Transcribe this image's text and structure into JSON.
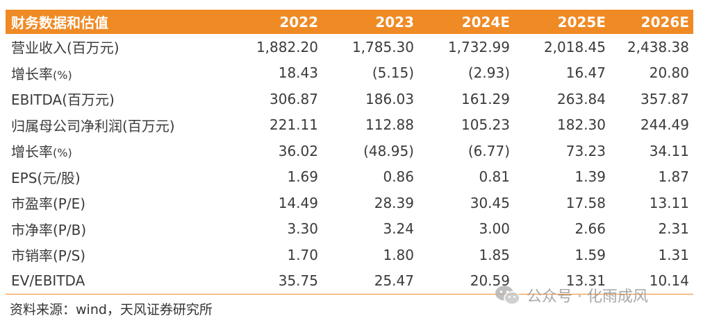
{
  "table": {
    "headers": [
      "财务数据和估值",
      "2022",
      "2023",
      "2024E",
      "2025E",
      "2026E"
    ],
    "rows": [
      {
        "label": "营业收入(百万元)",
        "label_suffix": "",
        "values": [
          "1,882.20",
          "1,785.30",
          "1,732.99",
          "2,018.45",
          "2,438.38"
        ]
      },
      {
        "label": "增长率",
        "label_suffix": "(%)",
        "values": [
          "18.43",
          "(5.15)",
          "(2.93)",
          "16.47",
          "20.80"
        ]
      },
      {
        "label": "EBITDA(百万元)",
        "label_suffix": "",
        "values": [
          "306.87",
          "186.03",
          "161.29",
          "263.84",
          "357.87"
        ]
      },
      {
        "label": "归属母公司净利润(百万元)",
        "label_suffix": "",
        "values": [
          "221.11",
          "112.88",
          "105.23",
          "182.30",
          "244.49"
        ]
      },
      {
        "label": "增长率",
        "label_suffix": "(%)",
        "values": [
          "36.02",
          "(48.95)",
          "(6.77)",
          "73.23",
          "34.11"
        ]
      },
      {
        "label": "EPS(元/股)",
        "label_suffix": "",
        "values": [
          "1.69",
          "0.86",
          "0.81",
          "1.39",
          "1.87"
        ]
      },
      {
        "label": "市盈率(P/E)",
        "label_suffix": "",
        "values": [
          "14.49",
          "28.39",
          "30.45",
          "17.58",
          "13.11"
        ]
      },
      {
        "label": "市净率(P/B)",
        "label_suffix": "",
        "values": [
          "3.30",
          "3.24",
          "3.00",
          "2.66",
          "2.31"
        ]
      },
      {
        "label": "市销率(P/S)",
        "label_suffix": "",
        "values": [
          "1.70",
          "1.80",
          "1.85",
          "1.59",
          "1.31"
        ]
      },
      {
        "label": "EV/EBITDA",
        "label_suffix": "",
        "values": [
          "35.75",
          "25.47",
          "20.59",
          "13.31",
          "10.14"
        ]
      }
    ]
  },
  "source": "资料来源：wind，天风证券研究所",
  "watermark": {
    "text": "公众号 · 化雨成风",
    "icon": "wechat-icon"
  },
  "colors": {
    "header_bg": "#f08a24",
    "header_text": "#ffffff",
    "rule": "#f08a24"
  }
}
